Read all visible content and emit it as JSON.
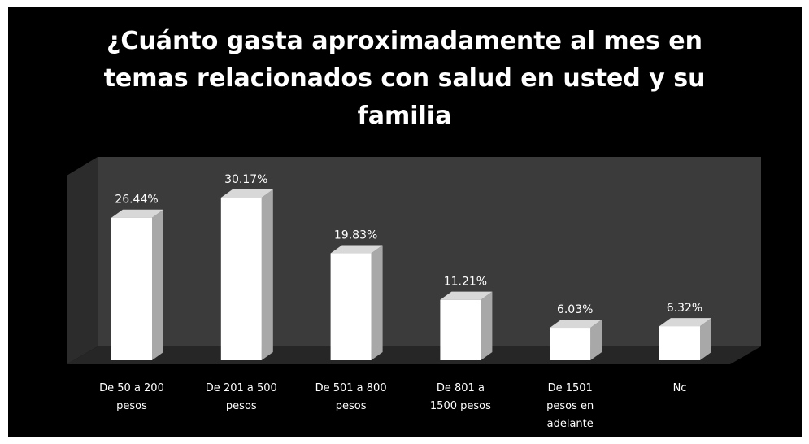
{
  "chart_data": {
    "type": "bar",
    "title": "¿Cuánto gasta aproximadamente al mes en temas relacionados con salud en usted y su familia",
    "categories": [
      "De 50 a 200 pesos",
      "De 201 a 500 pesos",
      "De 501 a 800 pesos",
      "De 801 a 1500 pesos",
      "De 1501 pesos en adelante",
      "Nc"
    ],
    "values": [
      26.44,
      30.17,
      19.83,
      11.21,
      6.03,
      6.32
    ],
    "value_labels": [
      "26.44%",
      "30.17%",
      "19.83%",
      "11.21%",
      "6.03%",
      "6.32%"
    ],
    "color": "#ffffff"
  }
}
